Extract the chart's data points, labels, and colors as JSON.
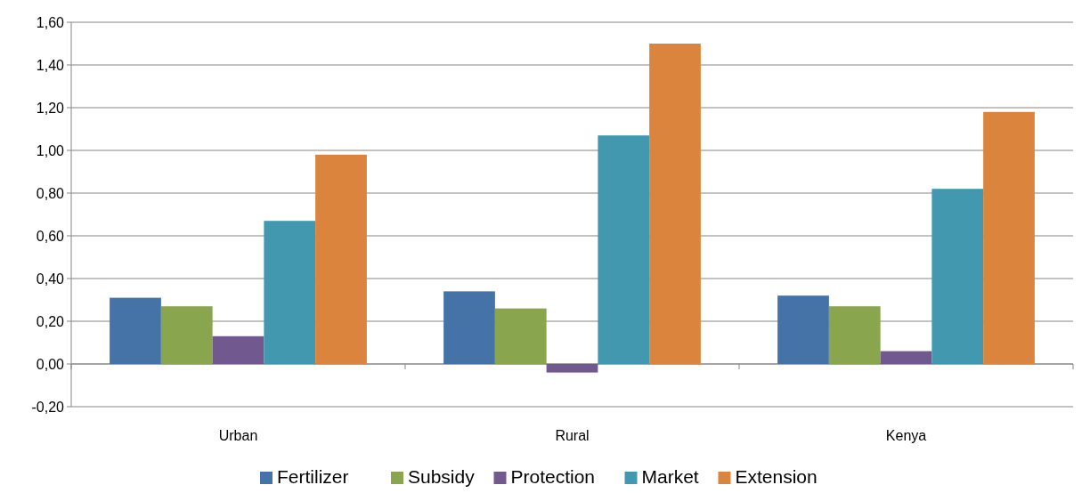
{
  "chart_data": {
    "type": "bar",
    "categories": [
      "Urban",
      "Rural",
      "Kenya"
    ],
    "series": [
      {
        "name": "Fertilizer",
        "color": "#4572a7",
        "values": [
          0.31,
          0.34,
          0.32
        ]
      },
      {
        "name": "Subsidy",
        "color": "#89a54e",
        "values": [
          0.27,
          0.26,
          0.27
        ]
      },
      {
        "name": "Protection",
        "color": "#71588f",
        "values": [
          0.13,
          -0.04,
          0.06
        ]
      },
      {
        "name": "Market",
        "color": "#4198af",
        "values": [
          0.67,
          1.07,
          0.82
        ]
      },
      {
        "name": "Extension",
        "color": "#db843d",
        "values": [
          0.98,
          1.5,
          1.18
        ]
      }
    ],
    "ylim": [
      -0.2,
      1.6
    ],
    "yticks": [
      {
        "value": -0.2,
        "label": "-0,20"
      },
      {
        "value": 0,
        "label": "0,00"
      },
      {
        "value": 0.2,
        "label": "0,20"
      },
      {
        "value": 0.4,
        "label": "0,40"
      },
      {
        "value": 0.6,
        "label": "0,60"
      },
      {
        "value": 0.8,
        "label": "0,80"
      },
      {
        "value": 1,
        "label": "1,00"
      },
      {
        "value": 1.2,
        "label": "1,20"
      },
      {
        "value": 1.4,
        "label": "1,40"
      },
      {
        "value": 1.6,
        "label": "1,60"
      }
    ],
    "grid": "y",
    "legend": "bottom"
  }
}
